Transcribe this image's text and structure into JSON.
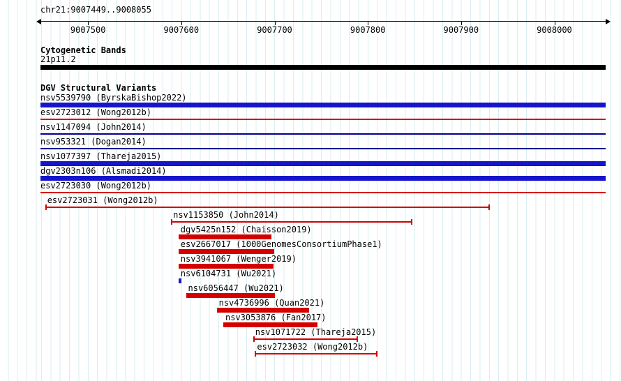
{
  "colors": {
    "gain_blue": "#1515cc",
    "loss_red": "#d40000",
    "thin_navy": "#000090",
    "band_black": "#000000",
    "grid_line": "#d9eef2",
    "background": "#ffffff",
    "axis_black": "#000000"
  },
  "chart_data": {
    "type": "bar",
    "subtype": "genomic-interval-tracks",
    "region": "chr21:9007449..9008055",
    "xlim": [
      9007449,
      9008055
    ],
    "x_ticks": [
      9007500,
      9007600,
      9007700,
      9007800,
      9007900,
      9008000
    ],
    "cytogenetic_band": {
      "title": "Cytogenetic Bands",
      "band": "21p11.2",
      "start": 9007449,
      "end": 9008055,
      "extends_beyond_view": true
    },
    "variants_title": "DGV Structural Variants",
    "tracks": [
      {
        "label": "nsv5539790 (ByrskaBishop2022)",
        "start": 9007449,
        "end": 9008055,
        "style": "thick",
        "color": "blue",
        "extends_beyond_view": true
      },
      {
        "label": "esv2723012 (Wong2012b)",
        "start": 9007449,
        "end": 9008055,
        "style": "thin",
        "color": "red",
        "extends_beyond_view": true
      },
      {
        "label": "nsv1147094 (John2014)",
        "start": 9007449,
        "end": 9008055,
        "style": "thin",
        "color": "navy",
        "extends_beyond_view": true
      },
      {
        "label": "nsv953321 (Dogan2014)",
        "start": 9007449,
        "end": 9008055,
        "style": "thin",
        "color": "navy",
        "extends_beyond_view": true
      },
      {
        "label": "nsv1077397 (Thareja2015)",
        "start": 9007449,
        "end": 9008055,
        "style": "thick",
        "color": "blue",
        "extends_beyond_view": true
      },
      {
        "label": "dgv2303n106 (Alsmadi2014)",
        "start": 9007449,
        "end": 9008055,
        "style": "thick",
        "color": "blue",
        "extends_beyond_view": true
      },
      {
        "label": "esv2723030 (Wong2012b)",
        "start": 9007449,
        "end": 9008055,
        "style": "thin",
        "color": "red",
        "extends_beyond_view": true
      },
      {
        "label": "esv2723031 (Wong2012b)",
        "start": 9007454,
        "end": 9007931,
        "style": "whisker",
        "color": "red"
      },
      {
        "label": "nsv1153850 (John2014)",
        "start": 9007589,
        "end": 9007848,
        "style": "whisker",
        "color": "red"
      },
      {
        "label": "dgv5425n152 (Chaisson2019)",
        "start": 9007597,
        "end": 9007697,
        "style": "thick",
        "color": "red"
      },
      {
        "label": "esv2667017 (1000GenomesConsortiumPhase1)",
        "start": 9007597,
        "end": 9007700,
        "style": "thick",
        "color": "red"
      },
      {
        "label": "nsv3941067 (Wenger2019)",
        "start": 9007597,
        "end": 9007699,
        "style": "thick",
        "color": "red"
      },
      {
        "label": "nsv6104731 (Wu2021)",
        "start": 9007597,
        "end": 9007600,
        "style": "thick",
        "color": "blue"
      },
      {
        "label": "nsv6056447 (Wu2021)",
        "start": 9007605,
        "end": 9007700,
        "style": "thick",
        "color": "red"
      },
      {
        "label": "nsv4736996 (Quan2021)",
        "start": 9007638,
        "end": 9007737,
        "style": "thick",
        "color": "red"
      },
      {
        "label": "nsv3053876 (Fan2017)",
        "start": 9007645,
        "end": 9007746,
        "style": "thick",
        "color": "red"
      },
      {
        "label": "nsv1071722 (Thareja2015)",
        "start": 9007677,
        "end": 9007789,
        "style": "whisker",
        "color": "red"
      },
      {
        "label": "esv2723032 (Wong2012b)",
        "start": 9007679,
        "end": 9007810,
        "style": "whisker",
        "color": "red"
      }
    ]
  }
}
